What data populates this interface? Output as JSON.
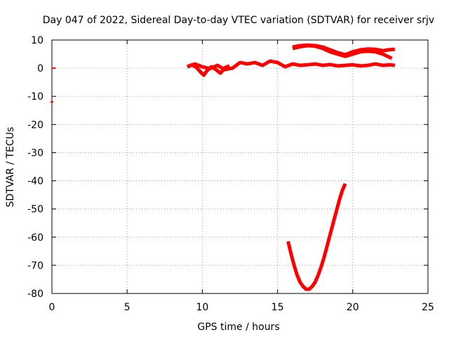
{
  "chart_data": {
    "type": "scatter",
    "title": "Day 047 of 2022, Sidereal Day-to-day VTEC variation (SDTVAR) for receiver srjv",
    "xlabel": "GPS time / hours",
    "ylabel": "SDTVAR / TECUs",
    "xlim": [
      0,
      25
    ],
    "ylim": [
      -80,
      10
    ],
    "xticks": [
      0,
      5,
      10,
      15,
      20,
      25
    ],
    "yticks": [
      10,
      0,
      -10,
      -20,
      -30,
      -40,
      -50,
      -60,
      -70,
      -80
    ],
    "grid": true,
    "series_color": "#ff0000",
    "series": [
      {
        "x": [
          0.0,
          0.2
        ],
        "y": [
          0.0,
          0.0
        ]
      },
      {
        "x": [
          -0.1,
          0.1
        ],
        "y": [
          -12.0,
          -12.0
        ]
      },
      {
        "x": [
          9.0,
          9.3,
          9.6,
          9.9,
          10.1,
          10.3,
          10.6,
          10.9,
          11.2,
          11.5,
          11.8
        ],
        "y": [
          0.5,
          1.2,
          0.3,
          -1.5,
          -2.5,
          -1.0,
          0.5,
          -0.5,
          -1.8,
          0.2,
          0.8
        ]
      },
      {
        "x": [
          9.0,
          9.5,
          10.0,
          10.5,
          11.0,
          11.5,
          12.0,
          12.5,
          13.0,
          13.5,
          14.0,
          14.5,
          15.0,
          15.5,
          16.0,
          16.5,
          17.0,
          17.5,
          18.0,
          18.5,
          19.0,
          19.5,
          20.0,
          20.5,
          21.0,
          21.5,
          22.0,
          22.5,
          22.8
        ],
        "y": [
          0.5,
          1.5,
          0.5,
          -0.2,
          1.0,
          -0.5,
          0.0,
          2.0,
          1.5,
          2.0,
          1.0,
          2.5,
          2.0,
          0.5,
          1.5,
          1.0,
          1.2,
          1.5,
          1.0,
          1.3,
          0.8,
          1.0,
          1.2,
          0.8,
          1.0,
          1.5,
          1.0,
          1.2,
          1.0
        ]
      },
      {
        "x": [
          16.0,
          16.5,
          17.0,
          17.5,
          18.0,
          18.5,
          19.0,
          19.5,
          20.0,
          20.5,
          21.0,
          21.5,
          22.0,
          22.5,
          22.8
        ],
        "y": [
          7.5,
          8.0,
          8.2,
          8.0,
          7.5,
          6.5,
          5.5,
          4.8,
          5.8,
          6.5,
          6.8,
          6.7,
          6.2,
          6.6,
          6.7
        ]
      },
      {
        "x": [
          16.0,
          16.5,
          17.0,
          17.5,
          18.0,
          18.5,
          19.0,
          19.5,
          20.0,
          20.5,
          21.0,
          21.5,
          22.0,
          22.6
        ],
        "y": [
          7.0,
          7.6,
          8.0,
          7.8,
          7.0,
          5.8,
          5.0,
          4.2,
          5.0,
          5.8,
          6.0,
          5.8,
          5.0,
          3.5
        ]
      },
      {
        "x": [
          15.7,
          15.9,
          16.1,
          16.3,
          16.5,
          16.7,
          16.9,
          17.1,
          17.3,
          17.5,
          17.7,
          17.9,
          18.1,
          18.3,
          18.5,
          18.7,
          18.9,
          19.1,
          19.3,
          19.5
        ],
        "y": [
          -61.5,
          -66.0,
          -70.0,
          -73.5,
          -76.0,
          -77.5,
          -78.5,
          -78.5,
          -77.5,
          -76.0,
          -73.5,
          -70.5,
          -67.0,
          -63.0,
          -59.0,
          -55.0,
          -51.0,
          -47.0,
          -43.5,
          -41.0
        ]
      }
    ]
  }
}
